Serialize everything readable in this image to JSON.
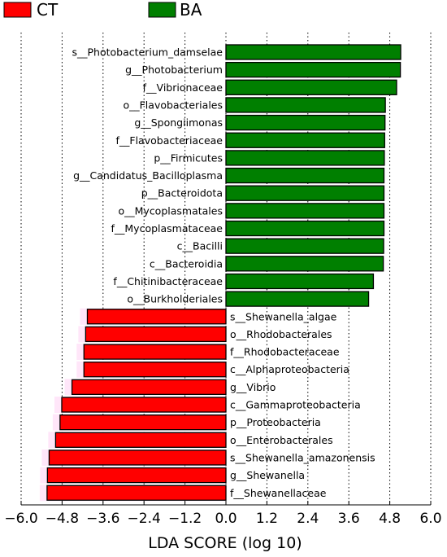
{
  "chart_data": {
    "type": "bar",
    "orientation": "horizontal",
    "title": "",
    "xlabel": "LDA SCORE (log 10)",
    "ylabel": "",
    "xlim": [
      -6.0,
      6.0
    ],
    "xticks": [
      "−6.0",
      "−4.8",
      "−3.6",
      "−2.4",
      "−1.2",
      "0.0",
      "1.2",
      "2.4",
      "3.6",
      "4.8",
      "6.0"
    ],
    "grid": "vertical dotted",
    "legend": {
      "placement": "top-left",
      "entries": [
        {
          "name": "CT",
          "color": "#ff0000"
        },
        {
          "name": "BA",
          "color": "#007f00"
        }
      ]
    },
    "series": [
      {
        "name": "BA",
        "color": "#007f00",
        "categories": [
          "s__Photobacterium_damselae",
          "g__Photobacterium",
          "f__Vibrionaceae",
          "o__Flavobacteriales",
          "g__Spongiimonas",
          "f__Flavobacteriaceae",
          "p__Firmicutes",
          "g__Candidatus_Bacilloplasma",
          "p__Bacteroidota",
          "o__Mycoplasmatales",
          "f__Mycoplasmataceae",
          "c__Bacilli",
          "c__Bacteroidia",
          "f__Chitinibacteraceae",
          "o__Burkholderiales"
        ],
        "values": [
          5.12,
          5.11,
          5.0,
          4.67,
          4.66,
          4.65,
          4.64,
          4.63,
          4.63,
          4.63,
          4.63,
          4.62,
          4.61,
          4.32,
          4.18
        ]
      },
      {
        "name": "CT",
        "color": "#ff0000",
        "categories": [
          "s__Shewanella_algae",
          "o__Rhodobacterales",
          "f__Rhodobacteraceae",
          "c__Alphaproteobacteria",
          "g__Vibrio",
          "c__Gammaproteobacteria",
          "p__Proteobacteria",
          "o__Enterobacterales",
          "s__Shewanella_amazonensis",
          "g__Shewanella",
          "f__Shewanellaceae"
        ],
        "values": [
          -4.06,
          -4.11,
          -4.16,
          -4.16,
          -4.51,
          -4.81,
          -4.86,
          -4.99,
          -5.18,
          -5.23,
          -5.24
        ]
      }
    ]
  }
}
